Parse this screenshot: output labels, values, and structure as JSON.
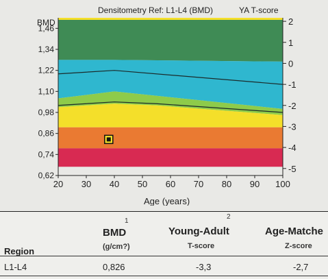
{
  "chart_data": {
    "type": "area",
    "title": "Densitometry Ref: L1-L4 (BMD)",
    "ylabel": "BMD (g/cml)",
    "y2label": "YA T-score",
    "xlabel": "Age (years)",
    "xlim": [
      20,
      100
    ],
    "ylim": [
      0.62,
      1.52
    ],
    "x_ticks": [
      "20",
      "30",
      "40",
      "50",
      "60",
      "70",
      "80",
      "90",
      "100"
    ],
    "y_ticks": [
      "0,62",
      "0,74",
      "0,86",
      "0,98",
      "1,10",
      "1,22",
      "1,34",
      "1,46"
    ],
    "y2_ticks": [
      "2",
      "1",
      "0",
      "-1",
      "-2",
      "-3",
      "-4",
      "-5"
    ],
    "y2_tick_values": [
      1.5,
      1.38,
      1.26,
      1.14,
      1.02,
      0.9,
      0.78,
      0.66
    ],
    "bands": [
      {
        "name": "green",
        "color": "#3f8b55",
        "lower": [
          [
            20,
            1.28
          ],
          [
            40,
            1.28
          ],
          [
            100,
            1.27
          ]
        ],
        "upper": [
          [
            20,
            1.52
          ],
          [
            100,
            1.52
          ]
        ]
      },
      {
        "name": "cyan",
        "color": "#2fb7cf",
        "lower": [
          [
            20,
            1.06
          ],
          [
            40,
            1.1
          ],
          [
            100,
            1.0
          ]
        ],
        "upper": [
          [
            20,
            1.28
          ],
          [
            40,
            1.28
          ],
          [
            100,
            1.27
          ]
        ]
      },
      {
        "name": "light-green",
        "color": "#8ecb4a",
        "lower": [
          [
            20,
            1.01
          ],
          [
            40,
            1.03
          ],
          [
            55,
            1.02
          ],
          [
            100,
            0.965
          ]
        ],
        "upper": [
          [
            20,
            1.06
          ],
          [
            40,
            1.1
          ],
          [
            100,
            1.0
          ]
        ]
      },
      {
        "name": "yellow",
        "color": "#f4df2a",
        "lower": [
          [
            20,
            0.895
          ],
          [
            100,
            0.895
          ]
        ],
        "upper": [
          [
            20,
            1.01
          ],
          [
            40,
            1.03
          ],
          [
            55,
            1.02
          ],
          [
            100,
            0.965
          ]
        ]
      },
      {
        "name": "orange",
        "color": "#ea7a32",
        "lower": [
          [
            20,
            0.775
          ],
          [
            100,
            0.775
          ]
        ],
        "upper": [
          [
            20,
            0.895
          ],
          [
            100,
            0.895
          ]
        ]
      },
      {
        "name": "red",
        "color": "#d82a52",
        "lower": [
          [
            20,
            0.67
          ],
          [
            100,
            0.67
          ]
        ],
        "upper": [
          [
            20,
            0.775
          ],
          [
            100,
            0.775
          ]
        ]
      }
    ],
    "lines": [
      [
        [
          20,
          1.2
        ],
        [
          40,
          1.22
        ],
        [
          100,
          1.14
        ]
      ],
      [
        [
          20,
          1.02
        ],
        [
          40,
          1.04
        ],
        [
          55,
          1.03
        ],
        [
          100,
          0.98
        ]
      ]
    ],
    "points": [
      {
        "x": 38,
        "y": 0.826
      }
    ]
  },
  "results": {
    "columns": [
      {
        "key": "region",
        "number": "",
        "label": "Region",
        "sub": ""
      },
      {
        "key": "bmd",
        "number": "1",
        "label": "BMD",
        "sub": "(g/cm?)"
      },
      {
        "key": "ya",
        "number": "2",
        "label": "Young-Adult",
        "sub": "T-score"
      },
      {
        "key": "am",
        "number": "",
        "label": "Age-Matche",
        "sub": "Z-score"
      }
    ],
    "row": {
      "region": "L1-L4",
      "bmd": "0,826",
      "ya": "-3,3",
      "am": "-2,7"
    }
  }
}
